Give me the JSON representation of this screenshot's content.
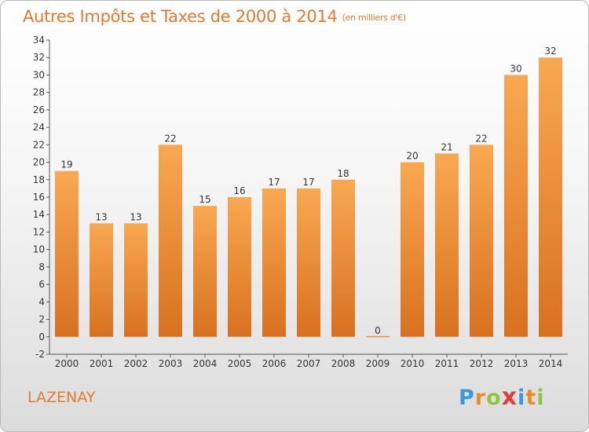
{
  "title": "Autres Impôts et Taxes de 2000 à 2014",
  "unit": "(en milliers d'€)",
  "commune": "LAZENAY",
  "logo": {
    "letters": [
      "P",
      "r",
      "o",
      "x",
      "i",
      "t",
      "i"
    ],
    "colors": [
      "#3a9ad9",
      "#f08a24",
      "#8dc63f",
      "#e23b3b",
      "#3a9ad9",
      "#f08a24",
      "#8dc63f"
    ]
  },
  "colors": {
    "bar_top": "#f9a852",
    "bar_bottom": "#d8711f",
    "title": "#e8782e",
    "axis": "#555555",
    "grid": "#dddddd"
  },
  "chart_data": {
    "type": "bar",
    "title": "Autres Impôts et Taxes de 2000 à 2014",
    "subtitle": "(en milliers d'€)",
    "xlabel": "",
    "ylabel": "",
    "categories": [
      "2000",
      "2001",
      "2002",
      "2003",
      "2004",
      "2005",
      "2006",
      "2007",
      "2008",
      "2009",
      "2010",
      "2011",
      "2012",
      "2013",
      "2014"
    ],
    "values": [
      19,
      13,
      13,
      22,
      15,
      16,
      17,
      17,
      18,
      0,
      20,
      21,
      22,
      30,
      32
    ],
    "ylim": [
      -2,
      34
    ],
    "yticks": [
      -2,
      0,
      2,
      4,
      6,
      8,
      10,
      12,
      14,
      16,
      18,
      20,
      22,
      24,
      26,
      28,
      30,
      32,
      34
    ],
    "grid": false,
    "legend": "none"
  }
}
